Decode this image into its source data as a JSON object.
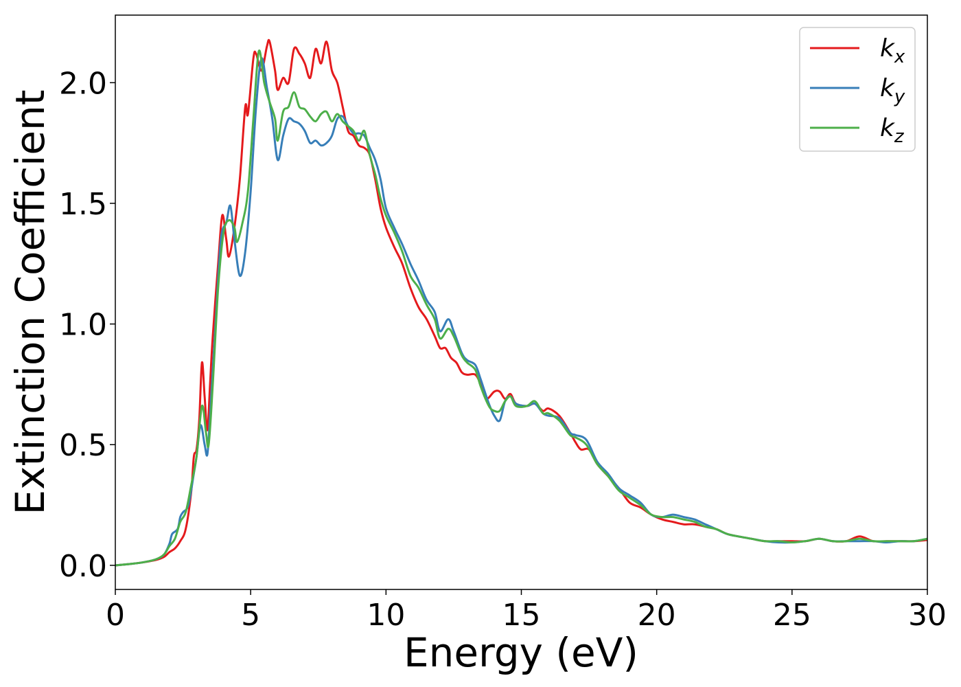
{
  "chart_data": {
    "type": "line",
    "xlabel": "Energy (eV)",
    "ylabel": "Extinction Coefficient",
    "xlim": [
      0,
      30
    ],
    "ylim": [
      -0.1,
      2.28
    ],
    "xticks": [
      0,
      5,
      10,
      15,
      20,
      25,
      30
    ],
    "xtick_labels": [
      "0",
      "5",
      "10",
      "15",
      "20",
      "25",
      "30"
    ],
    "yticks": [
      0.0,
      0.5,
      1.0,
      1.5,
      2.0
    ],
    "ytick_labels": [
      "0.0",
      "0.5",
      "1.0",
      "1.5",
      "2.0"
    ],
    "grid": false,
    "legend_position": "top-right",
    "series": [
      {
        "label_base": "k",
        "label_sub": "x",
        "color": "#e41a1c",
        "points": [
          [
            0,
            0
          ],
          [
            0.5,
            0.005
          ],
          [
            1.0,
            0.012
          ],
          [
            1.5,
            0.022
          ],
          [
            1.8,
            0.035
          ],
          [
            2.0,
            0.055
          ],
          [
            2.2,
            0.07
          ],
          [
            2.4,
            0.1
          ],
          [
            2.6,
            0.15
          ],
          [
            2.8,
            0.3
          ],
          [
            2.9,
            0.45
          ],
          [
            3.0,
            0.48
          ],
          [
            3.1,
            0.6
          ],
          [
            3.2,
            0.84
          ],
          [
            3.3,
            0.7
          ],
          [
            3.4,
            0.56
          ],
          [
            3.5,
            0.75
          ],
          [
            3.6,
            0.95
          ],
          [
            3.8,
            1.25
          ],
          [
            3.95,
            1.45
          ],
          [
            4.1,
            1.35
          ],
          [
            4.2,
            1.28
          ],
          [
            4.4,
            1.4
          ],
          [
            4.6,
            1.6
          ],
          [
            4.8,
            1.9
          ],
          [
            4.9,
            1.87
          ],
          [
            5.1,
            2.1
          ],
          [
            5.2,
            2.12
          ],
          [
            5.4,
            2.05
          ],
          [
            5.6,
            2.15
          ],
          [
            5.7,
            2.17
          ],
          [
            5.9,
            2.05
          ],
          [
            6.0,
            1.97
          ],
          [
            6.2,
            2.02
          ],
          [
            6.4,
            2.0
          ],
          [
            6.6,
            2.14
          ],
          [
            6.8,
            2.12
          ],
          [
            7.0,
            2.08
          ],
          [
            7.2,
            2.02
          ],
          [
            7.4,
            2.14
          ],
          [
            7.6,
            2.08
          ],
          [
            7.8,
            2.17
          ],
          [
            8.0,
            2.05
          ],
          [
            8.2,
            2.0
          ],
          [
            8.4,
            1.9
          ],
          [
            8.6,
            1.8
          ],
          [
            8.8,
            1.78
          ],
          [
            9.0,
            1.74
          ],
          [
            9.2,
            1.73
          ],
          [
            9.4,
            1.7
          ],
          [
            9.6,
            1.6
          ],
          [
            9.8,
            1.48
          ],
          [
            10.0,
            1.4
          ],
          [
            10.3,
            1.32
          ],
          [
            10.6,
            1.25
          ],
          [
            10.9,
            1.15
          ],
          [
            11.2,
            1.07
          ],
          [
            11.5,
            1.02
          ],
          [
            11.8,
            0.95
          ],
          [
            12.0,
            0.9
          ],
          [
            12.2,
            0.9
          ],
          [
            12.4,
            0.86
          ],
          [
            12.6,
            0.84
          ],
          [
            12.8,
            0.8
          ],
          [
            13.0,
            0.79
          ],
          [
            13.3,
            0.79
          ],
          [
            13.5,
            0.75
          ],
          [
            13.7,
            0.69
          ],
          [
            14.0,
            0.72
          ],
          [
            14.2,
            0.72
          ],
          [
            14.4,
            0.69
          ],
          [
            14.6,
            0.71
          ],
          [
            14.8,
            0.67
          ],
          [
            15.2,
            0.66
          ],
          [
            15.5,
            0.67
          ],
          [
            15.8,
            0.64
          ],
          [
            16.0,
            0.65
          ],
          [
            16.4,
            0.62
          ],
          [
            16.8,
            0.55
          ],
          [
            17.0,
            0.51
          ],
          [
            17.2,
            0.48
          ],
          [
            17.5,
            0.48
          ],
          [
            17.8,
            0.42
          ],
          [
            18.2,
            0.37
          ],
          [
            18.6,
            0.32
          ],
          [
            19.0,
            0.26
          ],
          [
            19.4,
            0.24
          ],
          [
            19.8,
            0.21
          ],
          [
            20.2,
            0.19
          ],
          [
            20.6,
            0.18
          ],
          [
            21.0,
            0.17
          ],
          [
            21.4,
            0.17
          ],
          [
            21.8,
            0.16
          ],
          [
            22.2,
            0.15
          ],
          [
            22.6,
            0.13
          ],
          [
            23.0,
            0.12
          ],
          [
            23.5,
            0.11
          ],
          [
            24.0,
            0.1
          ],
          [
            24.5,
            0.1
          ],
          [
            25.0,
            0.1
          ],
          [
            25.5,
            0.1
          ],
          [
            26.0,
            0.11
          ],
          [
            26.5,
            0.1
          ],
          [
            27.0,
            0.1
          ],
          [
            27.5,
            0.12
          ],
          [
            28.0,
            0.1
          ],
          [
            28.5,
            0.1
          ],
          [
            29.0,
            0.1
          ],
          [
            29.5,
            0.1
          ],
          [
            30.0,
            0.105
          ]
        ]
      },
      {
        "label_base": "k",
        "label_sub": "y",
        "color": "#377eb8",
        "points": [
          [
            0,
            0
          ],
          [
            0.5,
            0.005
          ],
          [
            1.0,
            0.012
          ],
          [
            1.5,
            0.025
          ],
          [
            1.8,
            0.045
          ],
          [
            2.0,
            0.09
          ],
          [
            2.1,
            0.13
          ],
          [
            2.3,
            0.15
          ],
          [
            2.4,
            0.2
          ],
          [
            2.5,
            0.22
          ],
          [
            2.7,
            0.25
          ],
          [
            2.9,
            0.38
          ],
          [
            3.0,
            0.45
          ],
          [
            3.15,
            0.58
          ],
          [
            3.3,
            0.5
          ],
          [
            3.4,
            0.46
          ],
          [
            3.5,
            0.62
          ],
          [
            3.7,
            1.0
          ],
          [
            3.9,
            1.35
          ],
          [
            4.1,
            1.42
          ],
          [
            4.25,
            1.49
          ],
          [
            4.4,
            1.35
          ],
          [
            4.6,
            1.2
          ],
          [
            4.8,
            1.3
          ],
          [
            5.0,
            1.55
          ],
          [
            5.2,
            1.9
          ],
          [
            5.4,
            2.1
          ],
          [
            5.6,
            1.98
          ],
          [
            5.8,
            1.85
          ],
          [
            6.0,
            1.68
          ],
          [
            6.2,
            1.78
          ],
          [
            6.4,
            1.85
          ],
          [
            6.6,
            1.84
          ],
          [
            6.8,
            1.83
          ],
          [
            7.0,
            1.8
          ],
          [
            7.2,
            1.75
          ],
          [
            7.4,
            1.76
          ],
          [
            7.6,
            1.74
          ],
          [
            7.8,
            1.75
          ],
          [
            8.0,
            1.78
          ],
          [
            8.2,
            1.85
          ],
          [
            8.4,
            1.86
          ],
          [
            8.6,
            1.82
          ],
          [
            8.8,
            1.79
          ],
          [
            9.0,
            1.79
          ],
          [
            9.2,
            1.78
          ],
          [
            9.4,
            1.73
          ],
          [
            9.6,
            1.68
          ],
          [
            9.8,
            1.6
          ],
          [
            10.0,
            1.48
          ],
          [
            10.3,
            1.4
          ],
          [
            10.6,
            1.33
          ],
          [
            10.9,
            1.25
          ],
          [
            11.2,
            1.18
          ],
          [
            11.5,
            1.1
          ],
          [
            11.8,
            1.05
          ],
          [
            12.0,
            0.97
          ],
          [
            12.3,
            1.02
          ],
          [
            12.5,
            0.97
          ],
          [
            12.8,
            0.88
          ],
          [
            13.0,
            0.85
          ],
          [
            13.3,
            0.83
          ],
          [
            13.5,
            0.77
          ],
          [
            13.8,
            0.67
          ],
          [
            14.0,
            0.62
          ],
          [
            14.2,
            0.6
          ],
          [
            14.4,
            0.68
          ],
          [
            14.6,
            0.7
          ],
          [
            14.8,
            0.67
          ],
          [
            15.2,
            0.66
          ],
          [
            15.5,
            0.67
          ],
          [
            15.8,
            0.63
          ],
          [
            16.0,
            0.62
          ],
          [
            16.4,
            0.61
          ],
          [
            16.8,
            0.55
          ],
          [
            17.0,
            0.54
          ],
          [
            17.4,
            0.52
          ],
          [
            17.8,
            0.43
          ],
          [
            18.2,
            0.38
          ],
          [
            18.6,
            0.32
          ],
          [
            19.0,
            0.29
          ],
          [
            19.4,
            0.26
          ],
          [
            19.8,
            0.21
          ],
          [
            20.2,
            0.2
          ],
          [
            20.6,
            0.21
          ],
          [
            21.0,
            0.2
          ],
          [
            21.4,
            0.19
          ],
          [
            21.8,
            0.17
          ],
          [
            22.2,
            0.15
          ],
          [
            22.6,
            0.13
          ],
          [
            23.0,
            0.12
          ],
          [
            23.5,
            0.11
          ],
          [
            24.0,
            0.1
          ],
          [
            24.5,
            0.095
          ],
          [
            25.0,
            0.095
          ],
          [
            25.5,
            0.1
          ],
          [
            26.0,
            0.11
          ],
          [
            26.5,
            0.1
          ],
          [
            27.0,
            0.1
          ],
          [
            27.5,
            0.1
          ],
          [
            28.0,
            0.1
          ],
          [
            28.5,
            0.095
          ],
          [
            29.0,
            0.1
          ],
          [
            29.5,
            0.1
          ],
          [
            30.0,
            0.11
          ]
        ]
      },
      {
        "label_base": "k",
        "label_sub": "z",
        "color": "#4daf4a",
        "points": [
          [
            0,
            0
          ],
          [
            0.5,
            0.005
          ],
          [
            1.0,
            0.012
          ],
          [
            1.5,
            0.025
          ],
          [
            1.8,
            0.045
          ],
          [
            2.0,
            0.08
          ],
          [
            2.2,
            0.11
          ],
          [
            2.4,
            0.18
          ],
          [
            2.6,
            0.22
          ],
          [
            2.8,
            0.33
          ],
          [
            3.0,
            0.45
          ],
          [
            3.2,
            0.66
          ],
          [
            3.35,
            0.55
          ],
          [
            3.45,
            0.5
          ],
          [
            3.6,
            0.75
          ],
          [
            3.8,
            1.15
          ],
          [
            4.0,
            1.38
          ],
          [
            4.2,
            1.43
          ],
          [
            4.4,
            1.4
          ],
          [
            4.5,
            1.34
          ],
          [
            4.7,
            1.42
          ],
          [
            4.9,
            1.55
          ],
          [
            5.1,
            1.85
          ],
          [
            5.3,
            2.13
          ],
          [
            5.5,
            2.0
          ],
          [
            5.7,
            1.92
          ],
          [
            5.9,
            1.85
          ],
          [
            6.0,
            1.76
          ],
          [
            6.2,
            1.88
          ],
          [
            6.4,
            1.9
          ],
          [
            6.6,
            1.96
          ],
          [
            6.8,
            1.9
          ],
          [
            7.0,
            1.89
          ],
          [
            7.2,
            1.86
          ],
          [
            7.4,
            1.84
          ],
          [
            7.6,
            1.87
          ],
          [
            7.8,
            1.88
          ],
          [
            8.0,
            1.84
          ],
          [
            8.2,
            1.87
          ],
          [
            8.4,
            1.84
          ],
          [
            8.6,
            1.82
          ],
          [
            8.8,
            1.8
          ],
          [
            9.0,
            1.76
          ],
          [
            9.2,
            1.8
          ],
          [
            9.4,
            1.7
          ],
          [
            9.6,
            1.62
          ],
          [
            9.8,
            1.52
          ],
          [
            10.0,
            1.45
          ],
          [
            10.3,
            1.38
          ],
          [
            10.6,
            1.3
          ],
          [
            10.9,
            1.2
          ],
          [
            11.2,
            1.15
          ],
          [
            11.5,
            1.08
          ],
          [
            11.8,
            1.02
          ],
          [
            12.0,
            0.94
          ],
          [
            12.3,
            0.98
          ],
          [
            12.5,
            0.95
          ],
          [
            12.8,
            0.87
          ],
          [
            13.0,
            0.84
          ],
          [
            13.3,
            0.81
          ],
          [
            13.5,
            0.74
          ],
          [
            13.8,
            0.66
          ],
          [
            14.0,
            0.64
          ],
          [
            14.2,
            0.64
          ],
          [
            14.4,
            0.68
          ],
          [
            14.6,
            0.7
          ],
          [
            14.8,
            0.66
          ],
          [
            15.2,
            0.66
          ],
          [
            15.5,
            0.68
          ],
          [
            15.8,
            0.63
          ],
          [
            16.0,
            0.63
          ],
          [
            16.4,
            0.6
          ],
          [
            16.8,
            0.54
          ],
          [
            17.0,
            0.53
          ],
          [
            17.4,
            0.5
          ],
          [
            17.8,
            0.42
          ],
          [
            18.2,
            0.37
          ],
          [
            18.6,
            0.31
          ],
          [
            19.0,
            0.28
          ],
          [
            19.4,
            0.25
          ],
          [
            19.8,
            0.21
          ],
          [
            20.2,
            0.2
          ],
          [
            20.6,
            0.2
          ],
          [
            21.0,
            0.19
          ],
          [
            21.4,
            0.18
          ],
          [
            21.8,
            0.16
          ],
          [
            22.2,
            0.15
          ],
          [
            22.6,
            0.13
          ],
          [
            23.0,
            0.12
          ],
          [
            23.5,
            0.11
          ],
          [
            24.0,
            0.1
          ],
          [
            24.5,
            0.1
          ],
          [
            25.0,
            0.095
          ],
          [
            25.5,
            0.1
          ],
          [
            26.0,
            0.11
          ],
          [
            26.5,
            0.1
          ],
          [
            27.0,
            0.1
          ],
          [
            27.5,
            0.11
          ],
          [
            28.0,
            0.1
          ],
          [
            28.5,
            0.1
          ],
          [
            29.0,
            0.1
          ],
          [
            29.5,
            0.1
          ],
          [
            30.0,
            0.11
          ]
        ]
      }
    ]
  }
}
